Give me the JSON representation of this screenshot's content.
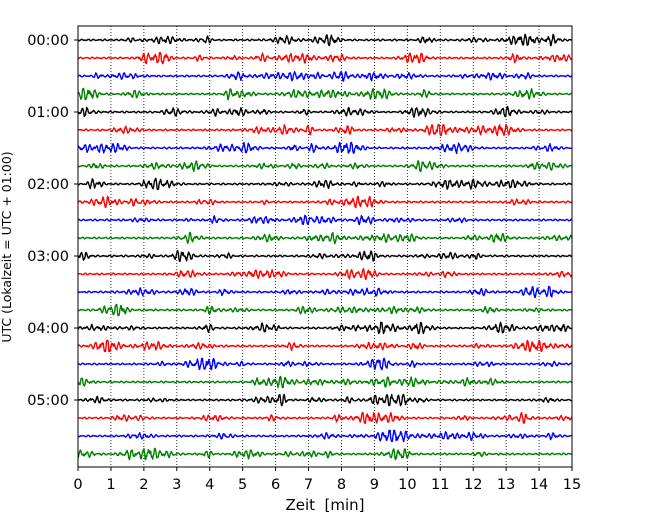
{
  "chart_data": {
    "type": "line",
    "title": "",
    "xlabel": "Zeit  [min]",
    "ylabel": "UTC (Lokalzeit = UTC + 01:00)",
    "xlim": [
      0,
      15
    ],
    "x_ticks": [
      "0",
      "1",
      "2",
      "3",
      "4",
      "5",
      "6",
      "7",
      "8",
      "9",
      "10",
      "11",
      "12",
      "13",
      "14",
      "15"
    ],
    "y_ticks": [
      "00:00",
      "01:00",
      "02:00",
      "03:00",
      "04:00",
      "05:00"
    ],
    "grid": "vertical dotted lines at each minute",
    "legend": "none",
    "trace_interval_minutes": 15,
    "trace_colors": [
      "#000000",
      "#ff0000",
      "#0000ff",
      "#008000"
    ],
    "series": [
      {
        "start": "00:00",
        "color": "#000000"
      },
      {
        "start": "00:15",
        "color": "#ff0000"
      },
      {
        "start": "00:30",
        "color": "#0000ff"
      },
      {
        "start": "00:45",
        "color": "#008000"
      },
      {
        "start": "01:00",
        "color": "#000000"
      },
      {
        "start": "01:15",
        "color": "#ff0000"
      },
      {
        "start": "01:30",
        "color": "#0000ff"
      },
      {
        "start": "01:45",
        "color": "#008000"
      },
      {
        "start": "02:00",
        "color": "#000000"
      },
      {
        "start": "02:15",
        "color": "#ff0000"
      },
      {
        "start": "02:30",
        "color": "#0000ff"
      },
      {
        "start": "02:45",
        "color": "#008000"
      },
      {
        "start": "03:00",
        "color": "#000000"
      },
      {
        "start": "03:15",
        "color": "#ff0000"
      },
      {
        "start": "03:30",
        "color": "#0000ff"
      },
      {
        "start": "03:45",
        "color": "#008000"
      },
      {
        "start": "04:00",
        "color": "#000000"
      },
      {
        "start": "04:15",
        "color": "#ff0000"
      },
      {
        "start": "04:30",
        "color": "#0000ff"
      },
      {
        "start": "04:45",
        "color": "#008000"
      },
      {
        "start": "05:00",
        "color": "#000000"
      },
      {
        "start": "05:15",
        "color": "#ff0000"
      },
      {
        "start": "05:30",
        "color": "#0000ff"
      },
      {
        "start": "05:45",
        "color": "#008000"
      }
    ]
  }
}
